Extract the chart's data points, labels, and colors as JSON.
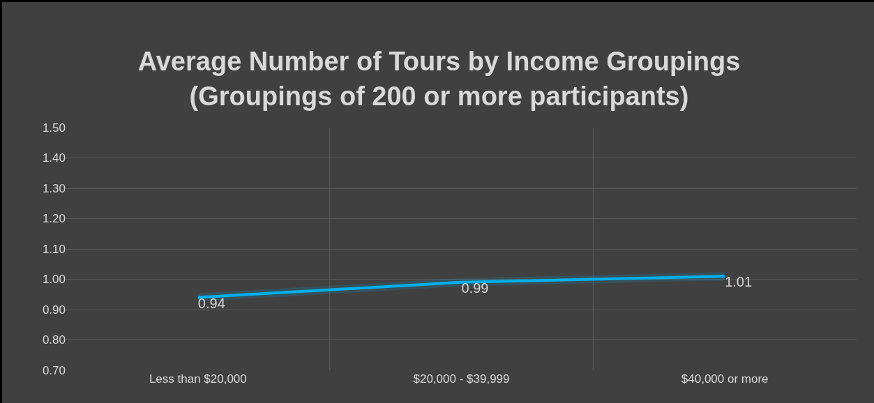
{
  "chart_data": {
    "type": "line",
    "title": "Average Number of Tours by Income Groupings\n(Groupings of 200 or more participants)",
    "categories": [
      "Less than $20,000",
      "$20,000 - $39,999",
      "$40,000 or more"
    ],
    "series": [
      {
        "color": "#00b0f0",
        "values": [
          0.94,
          0.99,
          1.01
        ]
      }
    ],
    "ylim": [
      0.7,
      1.5
    ],
    "yticks": [
      {
        "value": 0.7,
        "label": "0.70"
      },
      {
        "value": 0.8,
        "label": "0.80"
      },
      {
        "value": 0.9,
        "label": "0.90"
      },
      {
        "value": 1.0,
        "label": "1.00"
      },
      {
        "value": 1.1,
        "label": "1.10"
      },
      {
        "value": 1.2,
        "label": "1.20"
      },
      {
        "value": 1.3,
        "label": "1.30"
      },
      {
        "value": 1.4,
        "label": "1.40"
      },
      {
        "value": 1.5,
        "label": "1.50"
      }
    ],
    "grid": true,
    "marker": "none",
    "line_style": "solid",
    "data_labels": true
  }
}
